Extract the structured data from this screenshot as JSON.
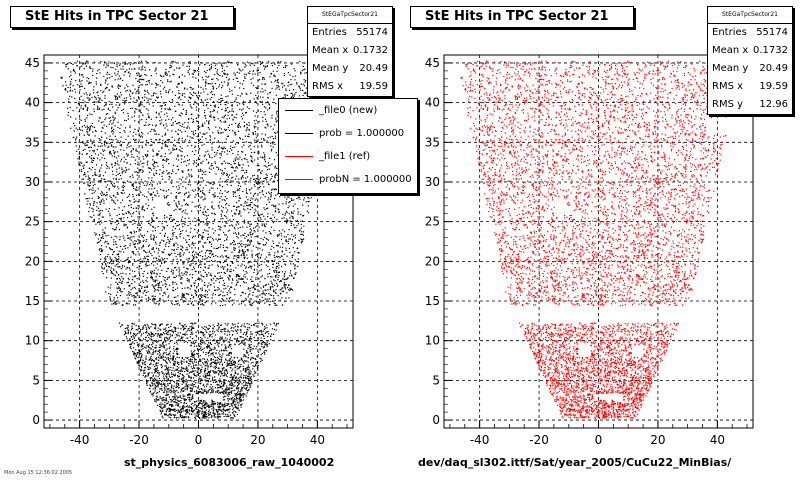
{
  "chart_data": [
    {
      "type": "scatter",
      "title": "StE Hits in TPC Sector 21",
      "xlabel": "st_physics_6083006_raw_1040002",
      "ylabel": "",
      "xlim": [
        -52,
        52
      ],
      "ylim": [
        -1,
        46
      ],
      "xticks": [
        "-40",
        "-20",
        "0",
        "20",
        "40"
      ],
      "xtick_values": [
        -40,
        -20,
        0,
        20,
        40
      ],
      "yticks": [
        "0",
        "5",
        "10",
        "15",
        "20",
        "25",
        "30",
        "35",
        "40",
        "45"
      ],
      "ytick_values": [
        0,
        5,
        10,
        15,
        20,
        25,
        30,
        35,
        40,
        45
      ],
      "grid": true,
      "color": "#000000",
      "stats": {
        "name": "StEGaTpcSector21",
        "rows": [
          {
            "label": "Entries",
            "value": "55174"
          },
          {
            "label": "Mean x",
            "value": "0.1732"
          },
          {
            "label": "Mean y",
            "value": "20.49"
          },
          {
            "label": "RMS x",
            "value": "19.59"
          }
        ]
      },
      "legend": {
        "position": "top-right",
        "entries": [
          {
            "label": "_file0 (new)",
            "color": "#000000"
          },
          {
            "label": "prob = 1.000000",
            "color": "#000000"
          },
          {
            "label": "_file1 (ref)",
            "color": "#ff0000"
          },
          {
            "label": "probN = 1.000000",
            "color": "#ff0000"
          }
        ]
      },
      "distribution": {
        "description_free": true,
        "band_low": {
          "y": [
            0.3,
            12.3
          ],
          "x_half_width_bottom": 12.5,
          "x_half_width_top": 27
        },
        "band_high": {
          "y": [
            13.7,
            45.3
          ],
          "x_half_width_bottom": 30,
          "x_half_width_top": 48
        }
      }
    },
    {
      "type": "scatter",
      "title": "StE Hits in TPC Sector 21",
      "xlabel": "dev/daq_sl302.ittf/Sat/year_2005/CuCu22_MinBias/",
      "ylabel": "",
      "xlim": [
        -52,
        52
      ],
      "ylim": [
        -1,
        46
      ],
      "xticks": [
        "-40",
        "-20",
        "0",
        "20",
        "40"
      ],
      "xtick_values": [
        -40,
        -20,
        0,
        20,
        40
      ],
      "yticks": [
        "0",
        "5",
        "10",
        "15",
        "20",
        "25",
        "30",
        "35",
        "40",
        "45"
      ],
      "ytick_values": [
        0,
        5,
        10,
        15,
        20,
        25,
        30,
        35,
        40,
        45
      ],
      "grid": true,
      "color": "#ff0000",
      "stats": {
        "name": "StEGaTpcSector21",
        "rows": [
          {
            "label": "Entries",
            "value": "55174"
          },
          {
            "label": "Mean x",
            "value": "0.1732"
          },
          {
            "label": "Mean y",
            "value": "20.49"
          },
          {
            "label": "RMS x",
            "value": "19.59"
          },
          {
            "label": "RMS y",
            "value": "12.96"
          }
        ]
      },
      "distribution": {
        "band_low": {
          "y": [
            0.3,
            12.3
          ],
          "x_half_width_bottom": 12.5,
          "x_half_width_top": 27
        },
        "band_high": {
          "y": [
            13.7,
            45.3
          ],
          "x_half_width_bottom": 30,
          "x_half_width_top": 48
        }
      }
    }
  ],
  "footer_note": "Mon Aug 15 12:36:02 2005"
}
